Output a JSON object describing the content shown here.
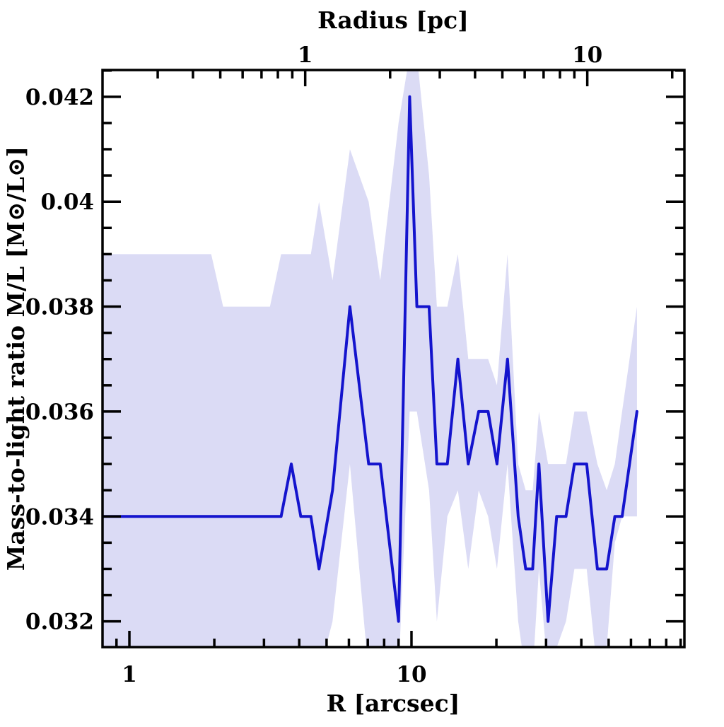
{
  "chart_data": {
    "type": "line",
    "x_scale": "log",
    "xlabel_bottom": "R [arcsec]",
    "xlabel_top": "Radius [pc]",
    "ylabel": "Mass-to-light ratio M/L [M⊙/L⊙]",
    "xlim_arcsec": [
      0.803,
      92.8
    ],
    "ylim": [
      0.03151,
      0.04251
    ],
    "arcsec_per_pc": 4.2,
    "grid": false,
    "legend": "none",
    "x_ticks_bottom": {
      "major": [
        1,
        10
      ],
      "major_labels": [
        "1",
        "10"
      ],
      "minor": [
        0.9,
        2,
        3,
        4,
        5,
        6,
        7,
        8,
        9,
        20,
        30,
        40,
        50,
        60,
        70,
        80,
        90
      ]
    },
    "x_ticks_top_pc": {
      "major": [
        1,
        10
      ],
      "major_labels": [
        "1",
        "10"
      ],
      "minor": [
        0.3,
        0.4,
        0.5,
        0.6,
        0.7,
        0.8,
        0.9,
        2,
        3,
        4,
        5,
        6,
        7,
        8,
        9,
        20
      ]
    },
    "y_ticks": {
      "major": [
        0.032,
        0.034,
        0.036,
        0.038,
        0.04,
        0.042
      ],
      "major_labels": [
        "0.032",
        "0.034",
        "0.036",
        "0.038",
        "0.04",
        "0.042"
      ],
      "minor": [
        0.0325,
        0.033,
        0.0335,
        0.0345,
        0.035,
        0.0355,
        0.0365,
        0.037,
        0.0375,
        0.0385,
        0.039,
        0.0395,
        0.0405,
        0.041,
        0.0415,
        0.0425
      ]
    },
    "series": [
      {
        "name": "mass-to-light-ratio-profile",
        "R_arcsec": [
          0.8,
          1.95,
          2.15,
          3.15,
          3.45,
          3.75,
          4.05,
          4.4,
          4.7,
          5.25,
          6.05,
          7.05,
          7.75,
          9.0,
          9.85,
          10.45,
          11.55,
          12.3,
          13.4,
          14.6,
          15.9,
          17.3,
          18.7,
          20.1,
          21.9,
          23.9,
          25.4,
          26.9,
          28.3,
          30.5,
          32.7,
          35.3,
          37.8,
          41.8,
          45.6,
          49.2,
          52.6,
          55.8,
          63.0
        ],
        "ML": [
          0.034,
          0.034,
          0.034,
          0.034,
          0.034,
          0.035,
          0.034,
          0.034,
          0.033,
          0.0345,
          0.038,
          0.035,
          0.035,
          0.032,
          0.042,
          0.038,
          0.038,
          0.035,
          0.035,
          0.037,
          0.035,
          0.036,
          0.036,
          0.035,
          0.037,
          0.034,
          0.033,
          0.033,
          0.035,
          0.032,
          0.034,
          0.034,
          0.035,
          0.035,
          0.033,
          0.033,
          0.034,
          0.034,
          0.036
        ]
      }
    ],
    "band": {
      "name": "uncertainty-band",
      "lo": [
        0.031,
        0.031,
        0.031,
        0.031,
        0.031,
        0.031,
        0.031,
        0.031,
        0.031,
        0.032,
        0.035,
        0.031,
        0.031,
        0.031,
        0.036,
        0.036,
        0.0345,
        0.032,
        0.034,
        0.0345,
        0.033,
        0.0345,
        0.034,
        0.033,
        0.035,
        0.032,
        0.031,
        0.031,
        0.033,
        0.031,
        0.0315,
        0.032,
        0.033,
        0.033,
        0.031,
        0.0315,
        0.0335,
        0.034,
        0.034
      ],
      "hi": [
        0.039,
        0.039,
        0.038,
        0.038,
        0.039,
        0.039,
        0.039,
        0.039,
        0.04,
        0.0385,
        0.041,
        0.04,
        0.0385,
        0.0415,
        0.0428,
        0.0428,
        0.0405,
        0.038,
        0.038,
        0.039,
        0.037,
        0.037,
        0.037,
        0.0365,
        0.039,
        0.035,
        0.0345,
        0.0345,
        0.036,
        0.035,
        0.035,
        0.035,
        0.036,
        0.036,
        0.035,
        0.0345,
        0.035,
        0.036,
        0.038
      ]
    },
    "colors": {
      "line": "#1414cd",
      "band": "#dbdbf5",
      "axis": "#000000",
      "background": "#ffffff"
    }
  }
}
